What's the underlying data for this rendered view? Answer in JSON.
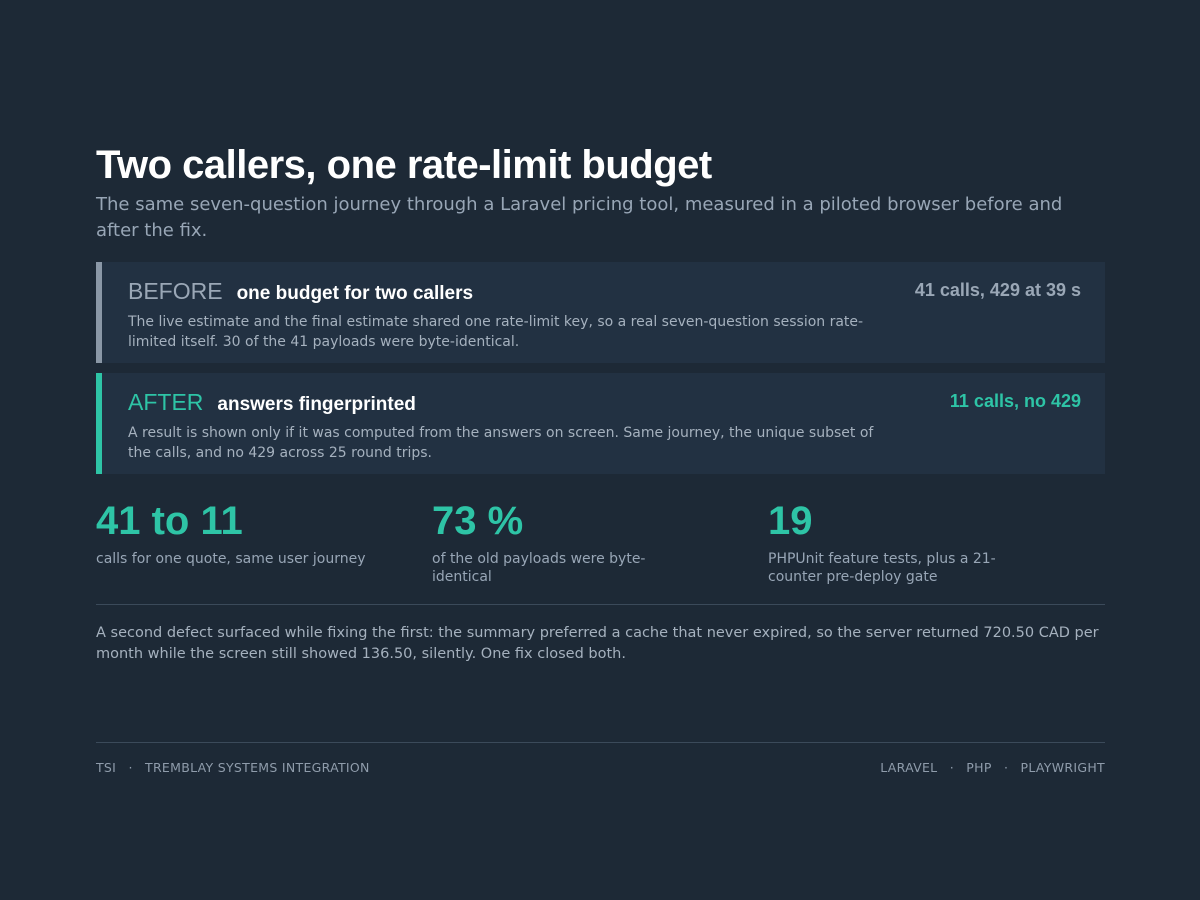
{
  "title": "Two callers, one rate-limit budget",
  "subtitle": "The same seven-question journey through a Laravel pricing tool, measured in a piloted browser before and after the fix.",
  "before": {
    "tag": "BEFORE",
    "heading": "one budget for two callers",
    "metric": "41 calls, 429 at 39 s",
    "description": "The live estimate and the final estimate shared one rate-limit key, so a real seven-question session rate-limited itself. 30 of the 41 payloads were byte-identical.",
    "accent_color": "#8a97a6"
  },
  "after": {
    "tag": "AFTER",
    "heading": "answers fingerprinted",
    "metric": "11 calls, no 429",
    "description": "A result is shown only if it was computed from the answers on screen. Same journey, the unique subset of the calls, and no 429 across 25 round trips.",
    "accent_color": "#2ec4a6"
  },
  "stats": [
    {
      "value": "41 to 11",
      "label": "calls for one quote, same user journey"
    },
    {
      "value": "73 %",
      "label": "of the old payloads were byte-identical"
    },
    {
      "value": "19",
      "label": "PHPUnit feature tests, plus a 21-counter pre-deploy gate"
    }
  ],
  "note": "A second defect surfaced while fixing the first: the summary preferred a cache that never expired, so the server returned 720.50 CAD per month while the screen still showed 136.50, silently. One fix closed both.",
  "footer": {
    "left": [
      "TSI",
      "TREMBLAY SYSTEMS INTEGRATION"
    ],
    "right": [
      "LARAVEL",
      "PHP",
      "PLAYWRIGHT"
    ],
    "separator": "·"
  }
}
